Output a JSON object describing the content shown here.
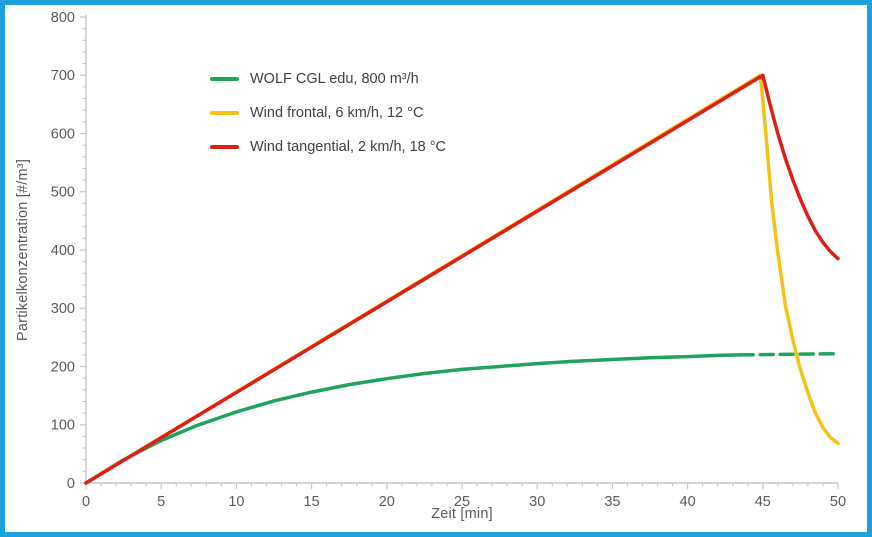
{
  "frame": {
    "border_color": "#1ba1dc",
    "background_color": "#ffffff"
  },
  "chart_data": {
    "type": "line",
    "title": "",
    "xlabel": "Zeit [min]",
    "ylabel": "Partikelkonzentration [#/m³]",
    "xlim": [
      0,
      50
    ],
    "ylim": [
      0,
      800
    ],
    "x_major_ticks": [
      0,
      5,
      10,
      15,
      20,
      25,
      30,
      35,
      40,
      45,
      50
    ],
    "x_minor_step": 1,
    "y_major_ticks": [
      0,
      100,
      200,
      300,
      400,
      500,
      600,
      700,
      800
    ],
    "y_minor_step": 20,
    "grid": false,
    "legend_position": "inside-top-left",
    "axis_color": "#c9c7c7",
    "tick_label_color": "#595959",
    "series": [
      {
        "name": "WOLF CGL edu, 800 m³/h",
        "color": "#1ea45c",
        "segments": [
          {
            "style": "solid",
            "x": [
              0,
              2.5,
              5,
              7.5,
              10,
              12.5,
              15,
              17.5,
              20,
              22.5,
              25,
              27.5,
              30,
              32.5,
              35,
              37.5,
              40,
              42,
              43.5
            ],
            "y": [
              0,
              40,
              73,
              100,
              122,
              141,
              156,
              169,
              179,
              188,
              195,
              200,
              205,
              209,
              212,
              215,
              217,
              219,
              220
            ]
          },
          {
            "style": "dashed",
            "x": [
              43.5,
              50
            ],
            "y": [
              220,
              222
            ]
          }
        ]
      },
      {
        "name": "Wind frontal, 6 km/h, 12 °C",
        "color": "#f5c315",
        "segments": [
          {
            "style": "solid",
            "x": [
              0,
              44.85,
              45.2,
              45.6,
              46,
              46.5,
              47,
              47.5,
              48,
              48.5,
              49,
              49.5,
              50
            ],
            "y": [
              0,
              700,
              600,
              480,
              395,
              305,
              245,
              195,
              155,
              120,
              95,
              78,
              68
            ]
          }
        ]
      },
      {
        "name": "Wind tangential, 2 km/h, 18 °C",
        "color": "#de1f17",
        "segments": [
          {
            "style": "solid",
            "x": [
              0,
              45,
              45.5,
              46,
              46.5,
              47,
              47.5,
              48,
              48.5,
              49,
              49.5,
              50
            ],
            "y": [
              0,
              700,
              648,
              600,
              557,
              520,
              487,
              458,
              433,
              413,
              397,
              385
            ]
          }
        ]
      }
    ]
  }
}
